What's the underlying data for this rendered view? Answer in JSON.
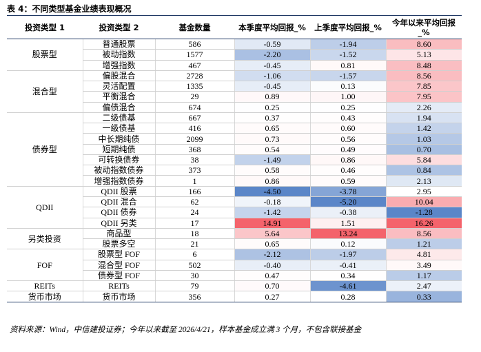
{
  "title": "表 4：不同类型基金业绩表现概况",
  "table": {
    "header": [
      "投资类型 1",
      "投资类型 2",
      "基金数量",
      "本季度平均回报_%",
      "上季度平均回报_%",
      "今年以来平均回报_%"
    ],
    "groups": [
      {
        "name": "股票型",
        "rows": [
          [
            "普通股票",
            "586",
            "-0.59",
            "-1.94",
            "8.60"
          ],
          [
            "被动指数",
            "1577",
            "-2.20",
            "-1.52",
            "5.13"
          ],
          [
            "增强指数",
            "467",
            "-0.45",
            "0.81",
            "8.48"
          ]
        ]
      },
      {
        "name": "混合型",
        "rows": [
          [
            "偏股混合",
            "2728",
            "-1.06",
            "-1.57",
            "8.56"
          ],
          [
            "灵活配置",
            "1335",
            "-0.45",
            "0.13",
            "7.85"
          ],
          [
            "平衡混合",
            "29",
            "0.89",
            "1.00",
            "7.95"
          ],
          [
            "偏债混合",
            "674",
            "0.25",
            "0.25",
            "2.26"
          ]
        ]
      },
      {
        "name": "债券型",
        "rows": [
          [
            "二级债基",
            "667",
            "0.37",
            "0.43",
            "1.94"
          ],
          [
            "一级债基",
            "416",
            "0.65",
            "0.60",
            "1.42"
          ],
          [
            "中长期纯债",
            "2099",
            "0.73",
            "0.56",
            "1.03"
          ],
          [
            "短期纯债",
            "368",
            "0.54",
            "0.49",
            "0.70"
          ],
          [
            "可转换债券",
            "38",
            "-1.49",
            "0.86",
            "5.84"
          ],
          [
            "被动指数债券",
            "373",
            "0.58",
            "0.46",
            "0.84"
          ],
          [
            "增强指数债券",
            "1",
            "0.86",
            "0.59",
            "2.13"
          ]
        ]
      },
      {
        "name": "QDII",
        "rows": [
          [
            "QDII 股票",
            "166",
            "-4.50",
            "-3.78",
            "2.95"
          ],
          [
            "QDII 混合",
            "62",
            "-0.18",
            "-5.20",
            "10.04"
          ],
          [
            "QDII 债券",
            "24",
            "-1.42",
            "-0.38",
            "-1.28"
          ],
          [
            "QDII 另类",
            "17",
            "14.91",
            "1.51",
            "16.26"
          ]
        ]
      },
      {
        "name": "另类投资",
        "rows": [
          [
            "商品型",
            "18",
            "5.64",
            "13.24",
            "8.56"
          ],
          [
            "股票多空",
            "21",
            "0.65",
            "0.12",
            "1.21"
          ]
        ]
      },
      {
        "name": "FOF",
        "rows": [
          [
            "股票型 FOF",
            "6",
            "-2.12",
            "-1.97",
            "4.81"
          ],
          [
            "混合型 FOF",
            "502",
            "-0.40",
            "-0.41",
            "3.49"
          ],
          [
            "债券型 FOF",
            "30",
            "0.47",
            "0.34",
            "1.17"
          ]
        ]
      },
      {
        "name": "REITs",
        "rows": [
          [
            "REITs",
            "79",
            "0.70",
            "-4.61",
            "2.47"
          ]
        ]
      },
      {
        "name": "货币市场",
        "rows": [
          [
            "货币市场",
            "356",
            "0.27",
            "0.28",
            "0.33"
          ]
        ]
      }
    ],
    "heatmap": {
      "low_color": "#5b86c8",
      "mid_color": "#ffffff",
      "high_color": "#f4636b"
    }
  },
  "source": "资料来源：Wind，中信建投证券；今年以来截至 2026/4/21，样本基金成立满 3 个月，不包含联接基金"
}
